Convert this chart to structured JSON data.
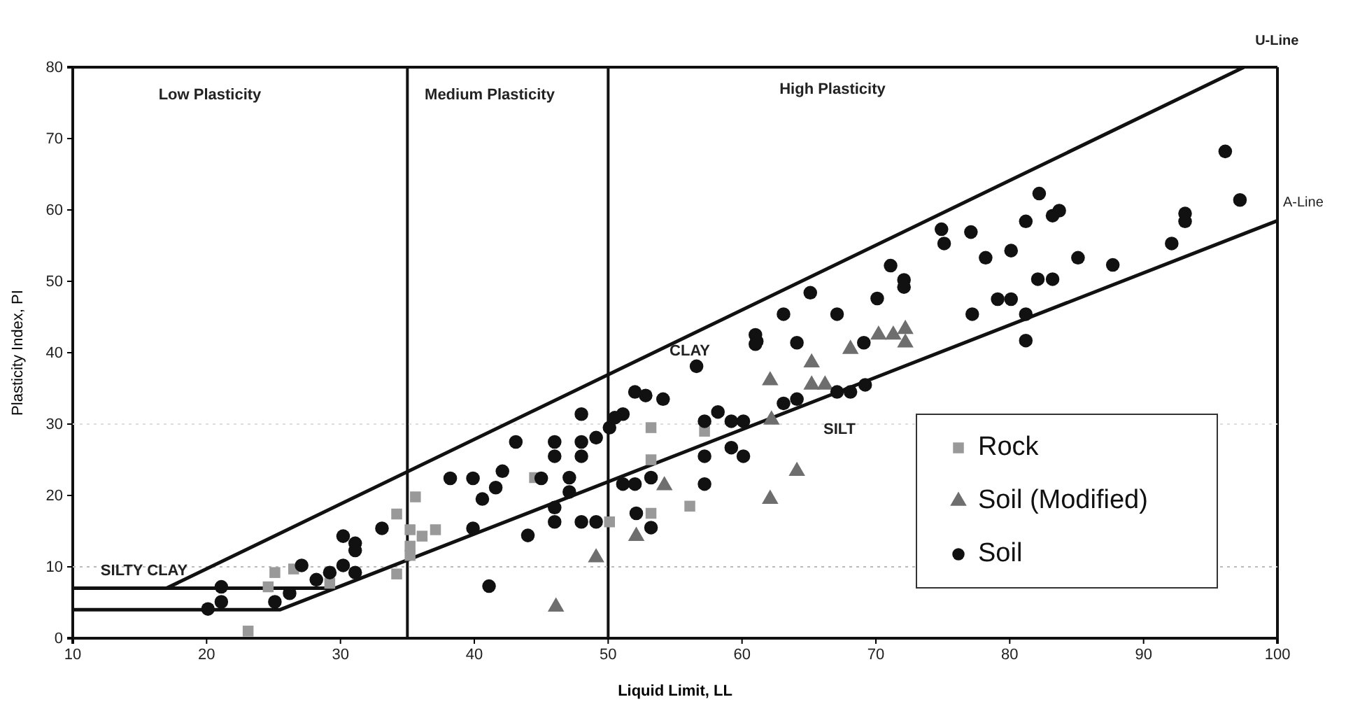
{
  "chart_data": {
    "type": "scatter",
    "xlabel": "Liquid Limit, LL",
    "ylabel": "Plasticity Index, PI",
    "xlim": [
      10,
      100
    ],
    "ylim": [
      0,
      80
    ],
    "xticks": [
      10,
      20,
      30,
      40,
      50,
      60,
      70,
      80,
      90,
      100
    ],
    "yticks": [
      0,
      10,
      20,
      30,
      40,
      50,
      60,
      70,
      80
    ],
    "legend": "bottom right",
    "ref_lines": [
      {
        "axis": "x",
        "value": 35,
        "color": "#111111",
        "line_style": "solid"
      },
      {
        "axis": "x",
        "value": 50,
        "color": "#111111",
        "line_style": "solid"
      },
      {
        "axis": "y",
        "value": 10,
        "color": "#bbbbbb",
        "line_style": "dotted"
      },
      {
        "axis": "y",
        "value": 30,
        "color": "#dddddd",
        "line_style": "dotted"
      }
    ],
    "annotations": [
      "Low Plasticity",
      "Medium Plasticity",
      "High Plasticity",
      "CLAY",
      "SILT",
      "SILTY CLAY"
    ],
    "series": [
      {
        "name": "U-Line",
        "type": "line",
        "color": "#111111",
        "marker": "none",
        "x": [
          10,
          17,
          97.5
        ],
        "values": [
          7,
          7,
          80
        ]
      },
      {
        "name": "A-Line",
        "type": "line",
        "color": "#111111",
        "marker": "none",
        "x": [
          10,
          25.5,
          100
        ],
        "values": [
          4,
          4,
          58.5
        ]
      },
      {
        "type": "line",
        "color": "#111111",
        "marker": "none",
        "x": [
          17,
          29.6
        ],
        "values": [
          7,
          7
        ]
      },
      {
        "name": "Rock",
        "color": "#999999",
        "marker": "square",
        "x": [
          23.1,
          25.1,
          24.6,
          26.5,
          29.2,
          34.2,
          35.6,
          35.2,
          35.2,
          35.2,
          34.2,
          36.1,
          37.1,
          44.5,
          50.1,
          53.2,
          53.2,
          53.2,
          56.1,
          57.2
        ],
        "values": [
          1.0,
          9.2,
          7.2,
          9.7,
          7.7,
          17.4,
          19.8,
          15.2,
          12.9,
          11.6,
          9.0,
          14.3,
          15.2,
          22.5,
          16.3,
          29.5,
          25.0,
          17.5,
          18.5,
          29.0
        ]
      },
      {
        "name": "Soil (Modified)",
        "color": "#6e6e6e",
        "marker": "triangle",
        "x": [
          54.2,
          52.1,
          49.1,
          46.1,
          62.1,
          62.1,
          65.2,
          65.2,
          66.2,
          68.1,
          70.2,
          71.3,
          72.2,
          72.2,
          62.2,
          64.1
        ],
        "values": [
          21.4,
          14.3,
          11.3,
          4.4,
          36.1,
          19.5,
          38.6,
          35.5,
          35.5,
          40.5,
          42.5,
          42.5,
          43.3,
          41.4,
          30.6,
          23.4
        ]
      },
      {
        "name": "Soil",
        "color": "#111111",
        "marker": "circle",
        "x": [
          21.1,
          21.1,
          20.1,
          25.1,
          26.2,
          27.1,
          28.2,
          29.2,
          30.2,
          31.1,
          30.2,
          31.1,
          31.1,
          33.1,
          38.2,
          39.9,
          39.9,
          42.1,
          41.6,
          40.6,
          43.1,
          41.1,
          44.0,
          45.0,
          46.0,
          46.0,
          47.1,
          47.1,
          46.0,
          46.0,
          48.0,
          48.0,
          48.0,
          49.1,
          48.0,
          49.1,
          50.1,
          51.1,
          50.5,
          52.0,
          52.8,
          54.1,
          56.6,
          51.1,
          52.0,
          53.2,
          52.1,
          53.2,
          57.2,
          58.2,
          59.2,
          60.1,
          57.2,
          59.2,
          60.1,
          57.2,
          61.1,
          61.0,
          61.0,
          63.1,
          64.1,
          65.1,
          67.1,
          69.1,
          70.1,
          71.1,
          72.1,
          72.1,
          74.9,
          75.1,
          63.1,
          64.1,
          67.1,
          68.1,
          69.2,
          77.1,
          78.2,
          80.1,
          81.2,
          82.2,
          83.2,
          83.7,
          85.1,
          87.7,
          92.1,
          93.1,
          93.1,
          96.1,
          97.2,
          77.2,
          79.1,
          80.1,
          81.2,
          81.2,
          82.1,
          83.2
        ],
        "values": [
          7.2,
          5.1,
          4.1,
          5.1,
          6.3,
          10.2,
          8.2,
          9.2,
          10.2,
          9.2,
          14.3,
          13.3,
          12.3,
          15.4,
          22.4,
          22.4,
          15.4,
          23.4,
          21.1,
          19.5,
          27.5,
          7.3,
          14.4,
          22.4,
          27.5,
          25.5,
          22.5,
          20.5,
          18.3,
          16.3,
          31.4,
          27.5,
          25.5,
          28.1,
          16.3,
          16.3,
          29.5,
          31.4,
          30.9,
          34.5,
          34.0,
          33.5,
          38.1,
          21.6,
          21.6,
          22.5,
          17.5,
          15.5,
          30.4,
          31.7,
          30.4,
          30.4,
          25.5,
          26.7,
          25.5,
          21.6,
          41.6,
          42.5,
          41.2,
          45.4,
          41.4,
          48.4,
          45.4,
          41.4,
          47.6,
          52.2,
          50.2,
          49.2,
          57.3,
          55.3,
          32.9,
          33.5,
          34.5,
          34.5,
          35.5,
          56.9,
          53.3,
          54.3,
          58.4,
          62.3,
          59.2,
          59.9,
          53.3,
          52.3,
          55.3,
          59.5,
          58.4,
          68.2,
          61.4,
          45.4,
          47.5,
          47.5,
          45.4,
          41.7,
          50.3,
          50.3
        ]
      }
    ]
  }
}
